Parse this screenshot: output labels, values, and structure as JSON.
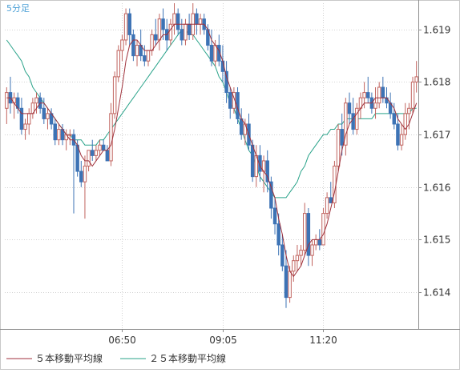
{
  "chart_data": {
    "type": "candlestick",
    "timeframe_label": "5分足",
    "ylim": [
      1.6133,
      1.6195
    ],
    "yticks": [
      1.614,
      1.615,
      1.616,
      1.617,
      1.618,
      1.619
    ],
    "ytick_labels": [
      "1.614",
      "1.615",
      "1.616",
      "1.617",
      "1.618",
      "1.619"
    ],
    "xtick_labels": [
      {
        "index": 31,
        "label": "06:50"
      },
      {
        "index": 58,
        "label": "09:05"
      },
      {
        "index": 85,
        "label": "11:20"
      }
    ],
    "candles": [
      [
        1.6175,
        1.6179,
        1.6172,
        1.6178
      ],
      [
        1.6178,
        1.6181,
        1.6174,
        1.6176
      ],
      [
        1.6176,
        1.6178,
        1.6173,
        1.6177
      ],
      [
        1.6177,
        1.6178,
        1.6174,
        1.6175
      ],
      [
        1.6175,
        1.6177,
        1.617,
        1.6171
      ],
      [
        1.6171,
        1.6173,
        1.6169,
        1.6172
      ],
      [
        1.6172,
        1.6175,
        1.617,
        1.6174
      ],
      [
        1.6174,
        1.6177,
        1.6173,
        1.6176
      ],
      [
        1.6176,
        1.6178,
        1.6174,
        1.6177
      ],
      [
        1.6177,
        1.6178,
        1.6174,
        1.6175
      ],
      [
        1.6175,
        1.6177,
        1.6172,
        1.6173
      ],
      [
        1.6173,
        1.6175,
        1.6171,
        1.6174
      ],
      [
        1.6174,
        1.6175,
        1.6171,
        1.6172
      ],
      [
        1.6172,
        1.6173,
        1.6168,
        1.6169
      ],
      [
        1.6169,
        1.6172,
        1.6168,
        1.6171
      ],
      [
        1.6171,
        1.6172,
        1.6168,
        1.6169
      ],
      [
        1.6169,
        1.6171,
        1.6167,
        1.617
      ],
      [
        1.617,
        1.6171,
        1.6168,
        1.617
      ],
      [
        1.617,
        1.6171,
        1.6155,
        1.6168
      ],
      [
        1.6168,
        1.6169,
        1.6162,
        1.6163
      ],
      [
        1.6163,
        1.6165,
        1.616,
        1.6161
      ],
      [
        1.6161,
        1.6166,
        1.6154,
        1.6164
      ],
      [
        1.6164,
        1.6167,
        1.6163,
        1.6167
      ],
      [
        1.6167,
        1.6169,
        1.6165,
        1.6166
      ],
      [
        1.6166,
        1.6168,
        1.6165,
        1.6167
      ],
      [
        1.6167,
        1.6169,
        1.6166,
        1.6168
      ],
      [
        1.6168,
        1.6169,
        1.6167,
        1.6167
      ],
      [
        1.6167,
        1.6168,
        1.6165,
        1.6165
      ],
      [
        1.6165,
        1.6176,
        1.6164,
        1.6174
      ],
      [
        1.6174,
        1.6182,
        1.6173,
        1.6181
      ],
      [
        1.6181,
        1.6187,
        1.618,
        1.6186
      ],
      [
        1.6186,
        1.6189,
        1.6184,
        1.6188
      ],
      [
        1.6188,
        1.6194,
        1.6187,
        1.6193
      ],
      [
        1.6193,
        1.6194,
        1.6187,
        1.6189
      ],
      [
        1.6189,
        1.619,
        1.6184,
        1.6185
      ],
      [
        1.6185,
        1.6188,
        1.6183,
        1.6187
      ],
      [
        1.6187,
        1.619,
        1.6184,
        1.6185
      ],
      [
        1.6185,
        1.6187,
        1.6183,
        1.6184
      ],
      [
        1.6184,
        1.6186,
        1.6183,
        1.6186
      ],
      [
        1.6186,
        1.619,
        1.6185,
        1.6189
      ],
      [
        1.6189,
        1.6192,
        1.6187,
        1.6188
      ],
      [
        1.6188,
        1.6193,
        1.6186,
        1.6192
      ],
      [
        1.6192,
        1.6194,
        1.6188,
        1.619
      ],
      [
        1.619,
        1.6192,
        1.6186,
        1.6188
      ],
      [
        1.6188,
        1.6192,
        1.6187,
        1.6191
      ],
      [
        1.6191,
        1.6195,
        1.6189,
        1.6193
      ],
      [
        1.6193,
        1.6194,
        1.6189,
        1.619
      ],
      [
        1.619,
        1.6192,
        1.6187,
        1.6188
      ],
      [
        1.6188,
        1.6192,
        1.6187,
        1.6191
      ],
      [
        1.6191,
        1.6193,
        1.6188,
        1.6189
      ],
      [
        1.6189,
        1.6195,
        1.6188,
        1.6193
      ],
      [
        1.6193,
        1.6194,
        1.6189,
        1.6191
      ],
      [
        1.6191,
        1.6193,
        1.6189,
        1.6192
      ],
      [
        1.6192,
        1.6193,
        1.6189,
        1.619
      ],
      [
        1.619,
        1.6191,
        1.6186,
        1.6187
      ],
      [
        1.6187,
        1.619,
        1.6183,
        1.6184
      ],
      [
        1.6184,
        1.6188,
        1.6183,
        1.6187
      ],
      [
        1.6187,
        1.6189,
        1.6183,
        1.6184
      ],
      [
        1.6184,
        1.6187,
        1.618,
        1.6182
      ],
      [
        1.6182,
        1.6184,
        1.6176,
        1.6178
      ],
      [
        1.6178,
        1.6179,
        1.6173,
        1.6175
      ],
      [
        1.6175,
        1.6179,
        1.6174,
        1.6178
      ],
      [
        1.6178,
        1.6179,
        1.6172,
        1.6173
      ],
      [
        1.6173,
        1.6175,
        1.6169,
        1.617
      ],
      [
        1.617,
        1.6173,
        1.6168,
        1.6172
      ],
      [
        1.6172,
        1.6174,
        1.6167,
        1.6168
      ],
      [
        1.6168,
        1.6169,
        1.6161,
        1.6162
      ],
      [
        1.6162,
        1.6168,
        1.616,
        1.6166
      ],
      [
        1.6166,
        1.6168,
        1.6161,
        1.6163
      ],
      [
        1.6163,
        1.6166,
        1.6159,
        1.6165
      ],
      [
        1.6165,
        1.6167,
        1.6159,
        1.6161
      ],
      [
        1.6161,
        1.6162,
        1.6154,
        1.6156
      ],
      [
        1.6156,
        1.6158,
        1.6151,
        1.6153
      ],
      [
        1.6153,
        1.6155,
        1.6147,
        1.6149
      ],
      [
        1.6149,
        1.6151,
        1.6144,
        1.6145
      ],
      [
        1.6145,
        1.6148,
        1.6137,
        1.6139
      ],
      [
        1.6139,
        1.6145,
        1.6138,
        1.6144
      ],
      [
        1.6144,
        1.6147,
        1.6142,
        1.6146
      ],
      [
        1.6146,
        1.6149,
        1.6144,
        1.6147
      ],
      [
        1.6147,
        1.6149,
        1.6145,
        1.6148
      ],
      [
        1.6148,
        1.6157,
        1.6147,
        1.6155
      ],
      [
        1.6155,
        1.6156,
        1.6145,
        1.6147
      ],
      [
        1.6147,
        1.615,
        1.6145,
        1.6149
      ],
      [
        1.6149,
        1.6151,
        1.6148,
        1.615
      ],
      [
        1.615,
        1.6152,
        1.6148,
        1.6149
      ],
      [
        1.6149,
        1.6156,
        1.6149,
        1.6155
      ],
      [
        1.6155,
        1.6159,
        1.6154,
        1.6158
      ],
      [
        1.6158,
        1.6161,
        1.6157,
        1.6157
      ],
      [
        1.6157,
        1.6165,
        1.6156,
        1.6164
      ],
      [
        1.6164,
        1.6172,
        1.6163,
        1.6171
      ],
      [
        1.6171,
        1.6174,
        1.6166,
        1.6168
      ],
      [
        1.6168,
        1.6177,
        1.6166,
        1.6176
      ],
      [
        1.6176,
        1.6178,
        1.6172,
        1.6174
      ],
      [
        1.6174,
        1.6177,
        1.617,
        1.6171
      ],
      [
        1.6171,
        1.6176,
        1.617,
        1.6175
      ],
      [
        1.6175,
        1.6178,
        1.6173,
        1.6177
      ],
      [
        1.6177,
        1.618,
        1.6175,
        1.6178
      ],
      [
        1.6178,
        1.6181,
        1.6176,
        1.6177
      ],
      [
        1.6177,
        1.6178,
        1.6174,
        1.6175
      ],
      [
        1.6175,
        1.6179,
        1.6173,
        1.6176
      ],
      [
        1.6176,
        1.618,
        1.6175,
        1.6179
      ],
      [
        1.6179,
        1.6181,
        1.6176,
        1.6177
      ],
      [
        1.6177,
        1.6179,
        1.6175,
        1.6176
      ],
      [
        1.6176,
        1.6178,
        1.6173,
        1.6174
      ],
      [
        1.6174,
        1.6176,
        1.6171,
        1.6172
      ],
      [
        1.6172,
        1.6174,
        1.6167,
        1.6168
      ],
      [
        1.6168,
        1.6172,
        1.6167,
        1.617
      ],
      [
        1.617,
        1.6176,
        1.6169,
        1.6174
      ],
      [
        1.6174,
        1.6176,
        1.6171,
        1.6175
      ],
      [
        1.6175,
        1.6181,
        1.6174,
        1.618
      ],
      [
        1.618,
        1.6184,
        1.6178,
        1.6181
      ]
    ],
    "ma5": [
      1.6177,
      1.6177,
      1.6176,
      1.6175,
      1.6174,
      1.6174,
      1.6174,
      1.6174,
      1.6175,
      1.6176,
      1.6176,
      1.6175,
      1.6174,
      1.6173,
      1.6172,
      1.6171,
      1.617,
      1.6169,
      1.6169,
      1.6168,
      1.6166,
      1.6165,
      1.6165,
      1.6164,
      1.6165,
      1.6166,
      1.6167,
      1.6167,
      1.6168,
      1.6171,
      1.6175,
      1.6179,
      1.6184,
      1.6187,
      1.6188,
      1.6188,
      1.6187,
      1.6186,
      1.6186,
      1.6186,
      1.6187,
      1.6188,
      1.6189,
      1.6189,
      1.619,
      1.6191,
      1.6191,
      1.6191,
      1.6191,
      1.6191,
      1.6191,
      1.6191,
      1.6191,
      1.6191,
      1.619,
      1.6188,
      1.6187,
      1.6186,
      1.6184,
      1.6181,
      1.6179,
      1.6177,
      1.6175,
      1.6173,
      1.6172,
      1.617,
      1.6168,
      1.6166,
      1.6164,
      1.6163,
      1.6162,
      1.616,
      1.6158,
      1.6154,
      1.6151,
      1.6147,
      1.6144,
      1.6143,
      1.6144,
      1.6145,
      1.6147,
      1.6149,
      1.615,
      1.615,
      1.615,
      1.6151,
      1.6153,
      1.6156,
      1.6159,
      1.6163,
      1.6167,
      1.617,
      1.6172,
      1.6173,
      1.6174,
      1.6175,
      1.6176,
      1.6176,
      1.6176,
      1.6177,
      1.6177,
      1.6177,
      1.6177,
      1.6176,
      1.6175,
      1.6173,
      1.6172,
      1.6171,
      1.6172,
      1.6174,
      1.6176
    ],
    "ma25": [
      1.6188,
      1.6187,
      1.6186,
      1.6185,
      1.6184,
      1.6182,
      1.6181,
      1.6179,
      1.6178,
      1.6177,
      1.6176,
      1.6175,
      1.6174,
      1.6173,
      1.6172,
      1.6171,
      1.617,
      1.617,
      1.6169,
      1.6169,
      1.6169,
      1.6168,
      1.6168,
      1.6168,
      1.6168,
      1.6169,
      1.6169,
      1.617,
      1.6171,
      1.6172,
      1.6173,
      1.6174,
      1.6175,
      1.6176,
      1.6177,
      1.6178,
      1.6179,
      1.618,
      1.6181,
      1.6182,
      1.6183,
      1.6184,
      1.6185,
      1.6186,
      1.6187,
      1.6188,
      1.6189,
      1.619,
      1.619,
      1.6189,
      1.6189,
      1.6188,
      1.6187,
      1.6186,
      1.6185,
      1.6184,
      1.6183,
      1.6181,
      1.618,
      1.6178,
      1.6176,
      1.6175,
      1.6173,
      1.6171,
      1.6169,
      1.6167,
      1.6166,
      1.6164,
      1.6162,
      1.6161,
      1.616,
      1.6159,
      1.6158,
      1.6158,
      1.6158,
      1.6158,
      1.6159,
      1.616,
      1.6161,
      1.6163,
      1.6164,
      1.6166,
      1.6167,
      1.6168,
      1.6169,
      1.617,
      1.617,
      1.6171,
      1.6171,
      1.6172,
      1.6172,
      1.6173,
      1.6173,
      1.6173,
      1.6173,
      1.6173,
      1.6173,
      1.6173,
      1.6173,
      1.6174,
      1.6174,
      1.6174,
      1.6174,
      1.6174,
      1.6174,
      1.6174,
      1.6174,
      1.6174,
      1.6174,
      1.6175,
      1.6175
    ],
    "legend": [
      {
        "name": "５本移動平均線",
        "color": "#a0323c"
      },
      {
        "name": "２５本移動平均線",
        "color": "#2aa38a"
      }
    ],
    "grid": true
  },
  "colors": {
    "up_candle": "#c1645f",
    "down_candle": "#3d73b5",
    "grid": "#d2d2d2",
    "axis": "#8c8c8c",
    "tick_text": "#333333",
    "timeframe_text": "#4a9fd6"
  }
}
